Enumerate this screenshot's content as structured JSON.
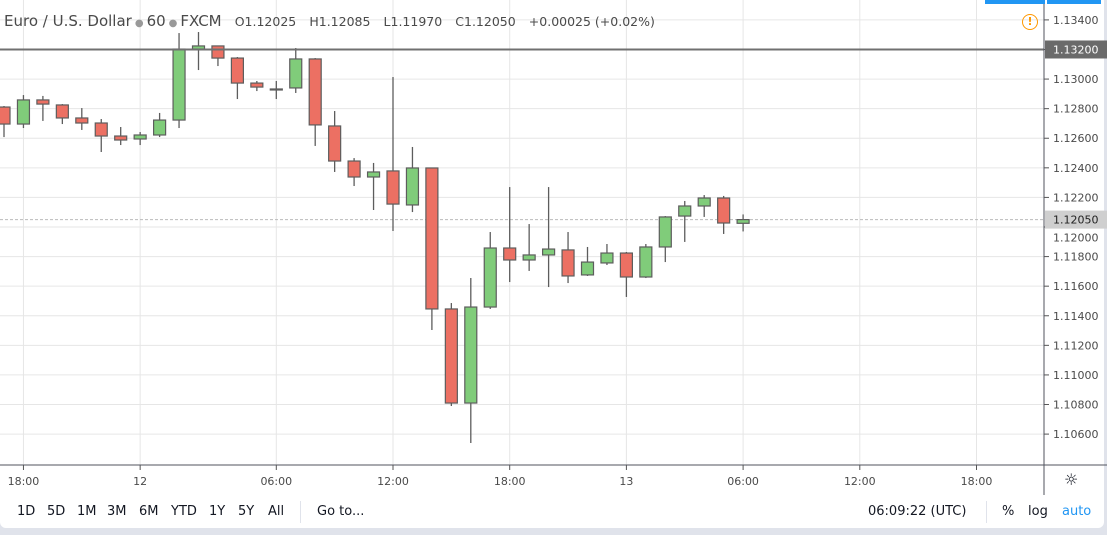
{
  "legend": {
    "symbol": "Euro / U.S. Dollar",
    "interval": "60",
    "exchange": "FXCM",
    "open": "O1.12025",
    "high": "H1.12085",
    "low": "L1.11970",
    "close": "C1.12050",
    "change": "+0.00025 (+0.02%)"
  },
  "colors": {
    "up": "#80cc7a",
    "down": "#ec7063",
    "border": "#5d5d5d",
    "accent": "#2196f3",
    "warning": "#ff9800"
  },
  "toolbar": {
    "ranges": [
      "1D",
      "5D",
      "1M",
      "3M",
      "6M",
      "YTD",
      "1Y",
      "5Y",
      "All"
    ],
    "goto": "Go to...",
    "clock": "06:09:22 (UTC)",
    "percent": "%",
    "log": "log",
    "auto": "auto"
  },
  "icons": {
    "warning": "warning-circle-icon",
    "settings": "gear-icon"
  },
  "chart_data": {
    "type": "candlestick",
    "title": "Euro / U.S. Dollar · 60 · FXCM",
    "ylim": [
      1.1045,
      1.135
    ],
    "grid": true,
    "y_ticks": [
      "1.13400",
      "1.13200",
      "1.13000",
      "1.12800",
      "1.12600",
      "1.12400",
      "1.12200",
      "1.12000",
      "1.11800",
      "1.11600",
      "1.11400",
      "1.11200",
      "1.11000",
      "1.10800",
      "1.10600"
    ],
    "x_ticks": [
      {
        "label": "18:00",
        "index": 1
      },
      {
        "label": "12",
        "index": 7
      },
      {
        "label": "06:00",
        "index": 14
      },
      {
        "label": "12:00",
        "index": 20
      },
      {
        "label": "18:00",
        "index": 26
      },
      {
        "label": "13",
        "index": 32
      },
      {
        "label": "06:00",
        "index": 38
      },
      {
        "label": "12:00",
        "index": 44
      },
      {
        "label": "18:00",
        "index": 50
      }
    ],
    "horizontal_line": {
      "price": 1.132,
      "label": "1.13200"
    },
    "last_price": {
      "price": 1.1205,
      "label": "1.12050"
    },
    "candles": [
      [
        1.12811,
        1.12818,
        1.12608,
        1.12696
      ],
      [
        1.12696,
        1.12892,
        1.12669,
        1.12859
      ],
      [
        1.12859,
        1.12886,
        1.12717,
        1.12831
      ],
      [
        1.12825,
        1.12831,
        1.12696,
        1.12737
      ],
      [
        1.12737,
        1.12804,
        1.12656,
        1.12703
      ],
      [
        1.12703,
        1.1273,
        1.12507,
        1.12615
      ],
      [
        1.12615,
        1.12676,
        1.12554,
        1.12588
      ],
      [
        1.12595,
        1.12642,
        1.12554,
        1.12622
      ],
      [
        1.12622,
        1.12771,
        1.12608,
        1.12723
      ],
      [
        1.12723,
        1.13311,
        1.12669,
        1.13203
      ],
      [
        1.13203,
        1.13318,
        1.13061,
        1.13224
      ],
      [
        1.13224,
        1.13224,
        1.13088,
        1.13142
      ],
      [
        1.13142,
        1.13149,
        1.12865,
        1.12973
      ],
      [
        1.12973,
        1.12987,
        1.12919,
        1.12946
      ],
      [
        1.12933,
        1.12987,
        1.12865,
        1.12933
      ],
      [
        1.1294,
        1.1321,
        1.12906,
        1.13136
      ],
      [
        1.13136,
        1.13142,
        1.12548,
        1.1269
      ],
      [
        1.12683,
        1.12784,
        1.12372,
        1.12446
      ],
      [
        1.12446,
        1.12466,
        1.12277,
        1.12338
      ],
      [
        1.12338,
        1.12433,
        1.12115,
        1.12372
      ],
      [
        1.12379,
        1.13014,
        1.11973,
        1.12155
      ],
      [
        1.12149,
        1.12541,
        1.12101,
        1.12399
      ],
      [
        1.12399,
        1.12399,
        1.11304,
        1.11446
      ],
      [
        1.11446,
        1.11486,
        1.1079,
        1.1081
      ],
      [
        1.1081,
        1.11655,
        1.1054,
        1.11459
      ],
      [
        1.11459,
        1.11966,
        1.11446,
        1.11858
      ],
      [
        1.11858,
        1.1227,
        1.11628,
        1.11777
      ],
      [
        1.11777,
        1.1202,
        1.11703,
        1.11811
      ],
      [
        1.11811,
        1.1227,
        1.11594,
        1.11851
      ],
      [
        1.11845,
        1.11966,
        1.11621,
        1.11669
      ],
      [
        1.11676,
        1.11865,
        1.11669,
        1.11763
      ],
      [
        1.11757,
        1.11885,
        1.11743,
        1.11824
      ],
      [
        1.11824,
        1.11831,
        1.11527,
        1.11662
      ],
      [
        1.11662,
        1.11885,
        1.11655,
        1.11865
      ],
      [
        1.11865,
        1.12074,
        1.11763,
        1.12068
      ],
      [
        1.12074,
        1.12176,
        1.11899,
        1.12142
      ],
      [
        1.12142,
        1.12216,
        1.12068,
        1.12196
      ],
      [
        1.12196,
        1.1221,
        1.11953,
        1.12027
      ],
      [
        1.12025,
        1.12085,
        1.1197,
        1.1205
      ]
    ]
  }
}
